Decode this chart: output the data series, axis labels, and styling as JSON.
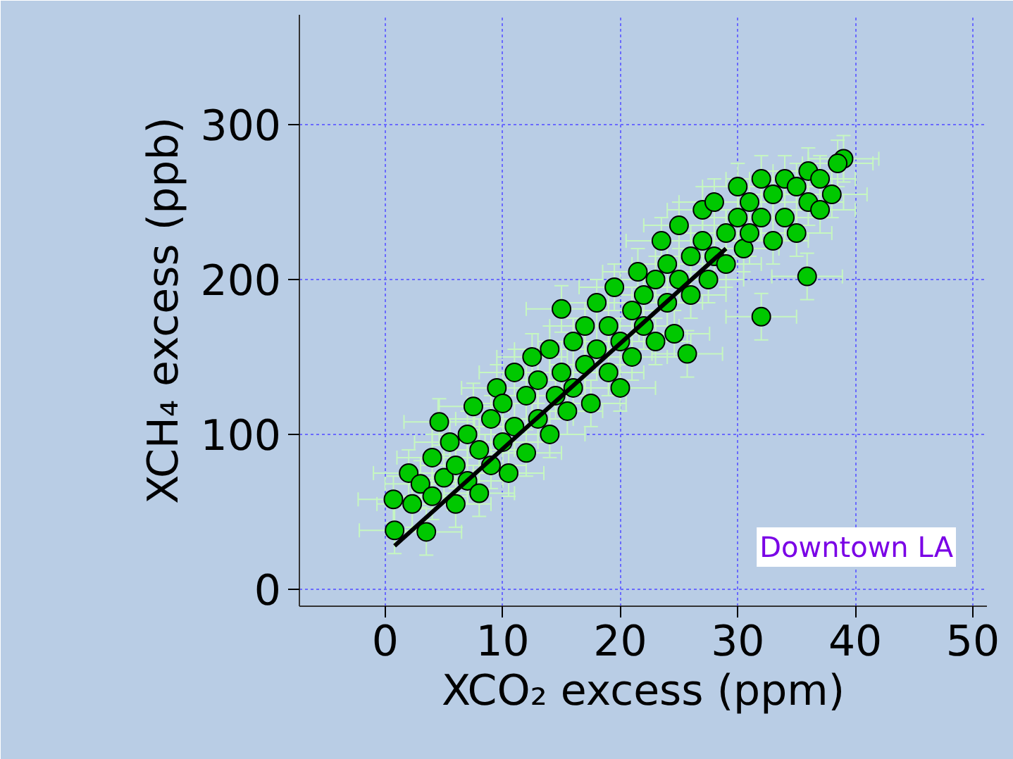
{
  "chart_data": {
    "type": "scatter",
    "xlabel": "XCO₂ excess (ppm)",
    "ylabel": "XCH₄ excess (ppb)",
    "xlim": [
      -7.3,
      51.2
    ],
    "ylim": [
      -11,
      371
    ],
    "xticks": [
      0,
      10,
      20,
      30,
      40,
      50
    ],
    "yticks": [
      0,
      100,
      200,
      300
    ],
    "grid": true,
    "annotations": [
      "Downtown LA"
    ],
    "series": [
      {
        "marker": "circle",
        "color": "#00c800",
        "x": [
          0.8,
          0.7,
          2.3,
          3.5,
          2,
          3,
          4,
          4.6,
          4,
          5,
          5.5,
          6,
          6,
          7,
          7,
          7.5,
          8,
          8,
          9,
          9,
          9.5,
          10,
          10,
          10.5,
          11,
          11,
          12,
          12,
          12.5,
          13,
          13,
          14,
          14,
          14.5,
          15,
          15,
          15.5,
          16,
          16,
          17,
          17,
          17.5,
          18,
          18,
          19,
          19,
          19.5,
          20,
          20,
          21,
          21,
          21.5,
          22,
          22,
          23,
          23,
          23.5,
          24,
          24,
          24.6,
          25,
          25,
          25.7,
          26,
          26,
          27,
          27,
          27.5,
          28,
          28,
          29,
          29,
          30,
          30,
          30.5,
          31,
          31,
          32,
          32,
          32,
          33,
          33,
          34,
          34,
          35,
          35,
          35.9,
          36,
          36,
          37,
          38,
          39,
          38.5,
          37
        ],
        "values": [
          38,
          58,
          55,
          37,
          75,
          68,
          60,
          108,
          85,
          72,
          95,
          55,
          80,
          100,
          70,
          118,
          90,
          62,
          110,
          80,
          130,
          95,
          120,
          75,
          140,
          105,
          88,
          125,
          150,
          110,
          135,
          100,
          155,
          125,
          181,
          140,
          115,
          160,
          130,
          145,
          170,
          120,
          155,
          185,
          140,
          170,
          195,
          160,
          130,
          180,
          150,
          205,
          170,
          190,
          160,
          200,
          225,
          185,
          210,
          165,
          200,
          235,
          152,
          215,
          190,
          225,
          245,
          200,
          215,
          250,
          230,
          210,
          240,
          260,
          220,
          250,
          230,
          265,
          176,
          240,
          255,
          225,
          265,
          240,
          260,
          230,
          202,
          270,
          250,
          265,
          255,
          278,
          275,
          245
        ],
        "errors": [
          15,
          15,
          15,
          15,
          15,
          15,
          15,
          15,
          15,
          15,
          15,
          15,
          15,
          15,
          15,
          15,
          15,
          15,
          15,
          15,
          15,
          15,
          15,
          15,
          15,
          15,
          15,
          15,
          15,
          15,
          15,
          15,
          15,
          15,
          15,
          15,
          15,
          15,
          15,
          15,
          15,
          15,
          15,
          15,
          15,
          15,
          15,
          15,
          15,
          15,
          15,
          15,
          15,
          15,
          15,
          15,
          15,
          15,
          15,
          15,
          15,
          15,
          15,
          15,
          15,
          15,
          15,
          15,
          15,
          15,
          15,
          15,
          15,
          15,
          15,
          15,
          15,
          15,
          15,
          15,
          15,
          15,
          15,
          15,
          15,
          15,
          15,
          15,
          15,
          15,
          15,
          15,
          15,
          15
        ],
        "xerrors": [
          3,
          3,
          3,
          3,
          3,
          3,
          3,
          3,
          3,
          3,
          3,
          3,
          3,
          3,
          3,
          3,
          3,
          3,
          3,
          3,
          3,
          3,
          3,
          3,
          3,
          3,
          3,
          3,
          3,
          3,
          3,
          3,
          3,
          3,
          3,
          3,
          3,
          3,
          3,
          3,
          3,
          3,
          3,
          3,
          3,
          3,
          3,
          3,
          3,
          3,
          3,
          3,
          3,
          3,
          3,
          3,
          3,
          3,
          3,
          3,
          3,
          3,
          3,
          3,
          3,
          3,
          3,
          3,
          3,
          3,
          3,
          3,
          3,
          3,
          3,
          3,
          3,
          3,
          3,
          3,
          3,
          3,
          3,
          3,
          3,
          3,
          3,
          3,
          3,
          3,
          3,
          3,
          3,
          3
        ]
      },
      {
        "type": "line",
        "color": "#000000",
        "x": [
          0.8,
          29
        ],
        "values": [
          28,
          220
        ]
      }
    ]
  }
}
